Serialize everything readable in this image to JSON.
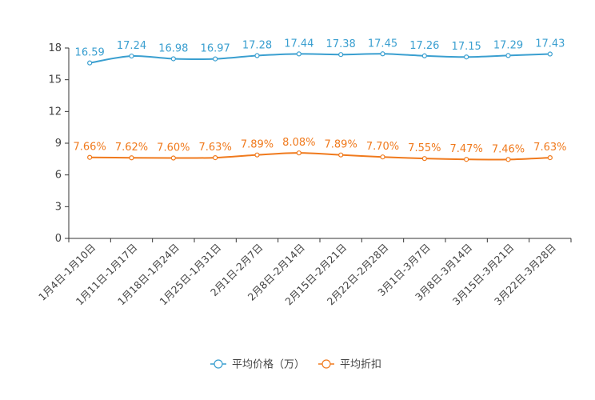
{
  "chart_data": {
    "type": "line",
    "title": "",
    "xlabel": "",
    "ylabel": "",
    "ylim": [
      0,
      18
    ],
    "yticks": [
      0,
      3,
      6,
      9,
      12,
      15,
      18
    ],
    "categories": [
      "1月4日-1月10日",
      "1月11日-1月17日",
      "1月18日-1月24日",
      "1月25日-1月31日",
      "2月1日-2月7日",
      "2月8日-2月14日",
      "2月15日-2月21日",
      "2月22日-2月28日",
      "3月1日-3月7日",
      "3月8日-3月14日",
      "3月15日-3月21日",
      "3月22日-3月28日"
    ],
    "series": [
      {
        "name": "平均价格（万）",
        "color": "#3a9fd0",
        "values": [
          16.59,
          17.24,
          16.98,
          16.97,
          17.28,
          17.44,
          17.38,
          17.45,
          17.26,
          17.15,
          17.29,
          17.43
        ],
        "labels": [
          "16.59",
          "17.24",
          "16.98",
          "16.97",
          "17.28",
          "17.44",
          "17.38",
          "17.45",
          "17.26",
          "17.15",
          "17.29",
          "17.43"
        ]
      },
      {
        "name": "平均折扣",
        "color": "#f07a1d",
        "values": [
          7.66,
          7.62,
          7.6,
          7.63,
          7.89,
          8.08,
          7.89,
          7.7,
          7.55,
          7.47,
          7.46,
          7.63
        ],
        "labels": [
          "7.66%",
          "7.62%",
          "7.60%",
          "7.63%",
          "7.89%",
          "8.08%",
          "7.89%",
          "7.70%",
          "7.55%",
          "7.47%",
          "7.46%",
          "7.63%"
        ]
      }
    ],
    "legend_position": "bottom-center",
    "grid": false
  }
}
